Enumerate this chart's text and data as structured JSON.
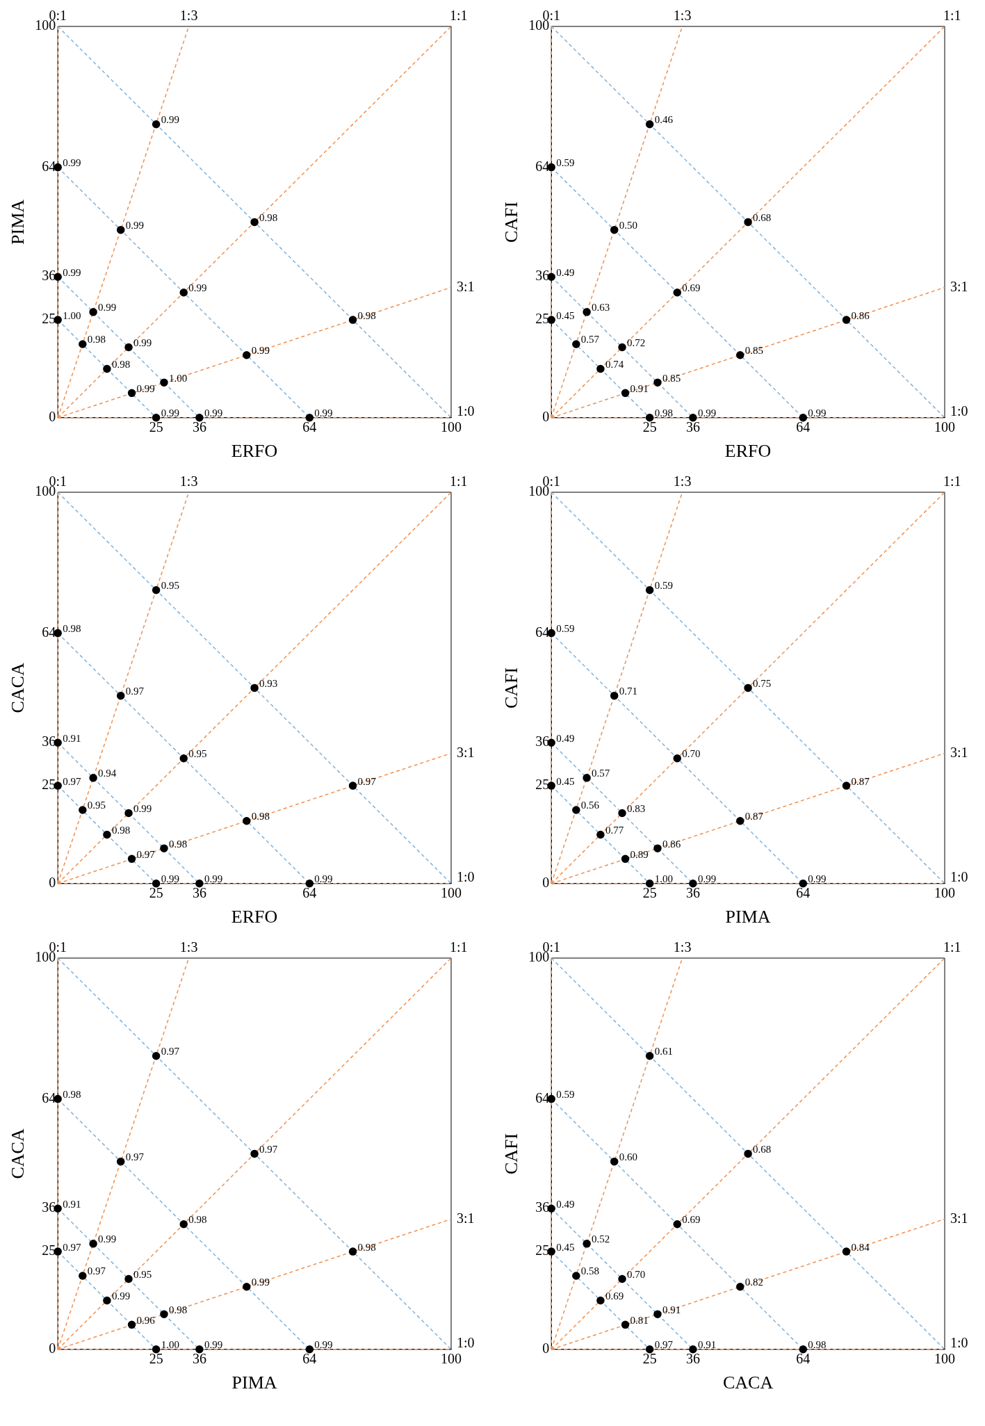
{
  "chart_data": [
    {
      "type": "scatter",
      "xlabel": "ERFO",
      "ylabel": "PIMA",
      "xlim": [
        0,
        100
      ],
      "ylim": [
        0,
        100
      ],
      "xticks": [
        25,
        36,
        64,
        100
      ],
      "yticks": [
        0,
        25,
        36,
        64,
        100
      ],
      "grid": false,
      "series": [
        {
          "type": "scatter",
          "color": "#000000",
          "marker": "circle",
          "x": [
            0,
            0,
            0,
            25,
            16,
            9,
            6.3,
            50,
            32,
            18,
            12.5,
            75,
            48,
            27,
            18.8,
            64,
            36,
            25
          ],
          "values": [
            64,
            36,
            25,
            75,
            48,
            27,
            18.8,
            50,
            32,
            18,
            12.5,
            25,
            16,
            9,
            6.3,
            0,
            0,
            0
          ]
        },
        {
          "type": "line",
          "color": "#7fb2dc",
          "marker": "none",
          "line_style": "dashed",
          "x": [
            0,
            100
          ],
          "values": [
            100,
            0
          ]
        },
        {
          "type": "line",
          "color": "#7fb2dc",
          "marker": "none",
          "line_style": "dashed",
          "x": [
            0,
            64
          ],
          "values": [
            64,
            0
          ]
        },
        {
          "type": "line",
          "color": "#7fb2dc",
          "marker": "none",
          "line_style": "dashed",
          "x": [
            0,
            36
          ],
          "values": [
            36,
            0
          ]
        },
        {
          "type": "line",
          "color": "#7fb2dc",
          "marker": "none",
          "line_style": "dashed",
          "x": [
            0,
            25
          ],
          "values": [
            25,
            0
          ]
        },
        {
          "type": "line",
          "name": "0:1",
          "color": "#f0904f",
          "marker": "none",
          "line_style": "dashed",
          "x": [
            0,
            0
          ],
          "values": [
            0,
            100
          ]
        },
        {
          "type": "line",
          "name": "1:3",
          "color": "#f0904f",
          "marker": "none",
          "line_style": "dashed",
          "x": [
            0,
            33.3
          ],
          "values": [
            0,
            100
          ]
        },
        {
          "type": "line",
          "name": "1:1",
          "color": "#f0904f",
          "marker": "none",
          "line_style": "dashed",
          "x": [
            0,
            100
          ],
          "values": [
            0,
            100
          ]
        },
        {
          "type": "line",
          "name": "3:1",
          "color": "#f0904f",
          "marker": "none",
          "line_style": "dashed",
          "x": [
            0,
            100
          ],
          "values": [
            0,
            33.3
          ]
        },
        {
          "type": "line",
          "name": "1:0",
          "color": "#f0904f",
          "marker": "none",
          "line_style": "dashed",
          "x": [
            0,
            100
          ],
          "values": [
            0,
            0
          ]
        }
      ],
      "annotations": [
        {
          "text": "0.99",
          "x": 0,
          "y": 64
        },
        {
          "text": "0.99",
          "x": 0,
          "y": 36
        },
        {
          "text": "1.00",
          "x": 0,
          "y": 25
        },
        {
          "text": "0.99",
          "x": 25,
          "y": 75
        },
        {
          "text": "0.99",
          "x": 16,
          "y": 48
        },
        {
          "text": "0.99",
          "x": 9,
          "y": 27
        },
        {
          "text": "0.98",
          "x": 6.3,
          "y": 18.8
        },
        {
          "text": "0.98",
          "x": 50,
          "y": 50
        },
        {
          "text": "0.99",
          "x": 32,
          "y": 32
        },
        {
          "text": "0.99",
          "x": 18,
          "y": 18
        },
        {
          "text": "0.98",
          "x": 12.5,
          "y": 12.5
        },
        {
          "text": "0.98",
          "x": 75,
          "y": 25
        },
        {
          "text": "0.99",
          "x": 48,
          "y": 16
        },
        {
          "text": "1.00",
          "x": 27,
          "y": 9
        },
        {
          "text": "0.99",
          "x": 18.8,
          "y": 6.3
        },
        {
          "text": "0.99",
          "x": 64,
          "y": 0
        },
        {
          "text": "0.99",
          "x": 36,
          "y": 0
        },
        {
          "text": "0.99",
          "x": 25,
          "y": 0
        }
      ]
    },
    {
      "type": "scatter",
      "xlabel": "ERFO",
      "ylabel": "CAFI",
      "xlim": [
        0,
        100
      ],
      "ylim": [
        0,
        100
      ],
      "xticks": [
        25,
        36,
        64,
        100
      ],
      "yticks": [
        0,
        25,
        36,
        64,
        100
      ],
      "grid": false,
      "series": [
        {
          "type": "scatter",
          "color": "#000000",
          "marker": "circle",
          "x": [
            0,
            0,
            0,
            25,
            16,
            9,
            6.3,
            50,
            32,
            18,
            12.5,
            75,
            48,
            27,
            18.8,
            64,
            36,
            25
          ],
          "values": [
            64,
            36,
            25,
            75,
            48,
            27,
            18.8,
            50,
            32,
            18,
            12.5,
            25,
            16,
            9,
            6.3,
            0,
            0,
            0
          ]
        },
        {
          "type": "line",
          "color": "#7fb2dc",
          "marker": "none",
          "line_style": "dashed",
          "x": [
            0,
            100
          ],
          "values": [
            100,
            0
          ]
        },
        {
          "type": "line",
          "color": "#7fb2dc",
          "marker": "none",
          "line_style": "dashed",
          "x": [
            0,
            64
          ],
          "values": [
            64,
            0
          ]
        },
        {
          "type": "line",
          "color": "#7fb2dc",
          "marker": "none",
          "line_style": "dashed",
          "x": [
            0,
            36
          ],
          "values": [
            36,
            0
          ]
        },
        {
          "type": "line",
          "color": "#7fb2dc",
          "marker": "none",
          "line_style": "dashed",
          "x": [
            0,
            25
          ],
          "values": [
            25,
            0
          ]
        },
        {
          "type": "line",
          "name": "0:1",
          "color": "#f0904f",
          "marker": "none",
          "line_style": "dashed",
          "x": [
            0,
            0
          ],
          "values": [
            0,
            100
          ]
        },
        {
          "type": "line",
          "name": "1:3",
          "color": "#f0904f",
          "marker": "none",
          "line_style": "dashed",
          "x": [
            0,
            33.3
          ],
          "values": [
            0,
            100
          ]
        },
        {
          "type": "line",
          "name": "1:1",
          "color": "#f0904f",
          "marker": "none",
          "line_style": "dashed",
          "x": [
            0,
            100
          ],
          "values": [
            0,
            100
          ]
        },
        {
          "type": "line",
          "name": "3:1",
          "color": "#f0904f",
          "marker": "none",
          "line_style": "dashed",
          "x": [
            0,
            100
          ],
          "values": [
            0,
            33.3
          ]
        },
        {
          "type": "line",
          "name": "1:0",
          "color": "#f0904f",
          "marker": "none",
          "line_style": "dashed",
          "x": [
            0,
            100
          ],
          "values": [
            0,
            0
          ]
        }
      ],
      "annotations": [
        {
          "text": "0.59",
          "x": 0,
          "y": 64
        },
        {
          "text": "0.49",
          "x": 0,
          "y": 36
        },
        {
          "text": "0.45",
          "x": 0,
          "y": 25
        },
        {
          "text": "0.46",
          "x": 25,
          "y": 75
        },
        {
          "text": "0.50",
          "x": 16,
          "y": 48
        },
        {
          "text": "0.63",
          "x": 9,
          "y": 27
        },
        {
          "text": "0.57",
          "x": 6.3,
          "y": 18.8
        },
        {
          "text": "0.68",
          "x": 50,
          "y": 50
        },
        {
          "text": "0.69",
          "x": 32,
          "y": 32
        },
        {
          "text": "0.72",
          "x": 18,
          "y": 18
        },
        {
          "text": "0.74",
          "x": 12.5,
          "y": 12.5
        },
        {
          "text": "0.86",
          "x": 75,
          "y": 25
        },
        {
          "text": "0.85",
          "x": 48,
          "y": 16
        },
        {
          "text": "0.85",
          "x": 27,
          "y": 9
        },
        {
          "text": "0.91",
          "x": 18.8,
          "y": 6.3
        },
        {
          "text": "0.99",
          "x": 64,
          "y": 0
        },
        {
          "text": "0.99",
          "x": 36,
          "y": 0
        },
        {
          "text": "0.98",
          "x": 25,
          "y": 0
        }
      ]
    },
    {
      "type": "scatter",
      "xlabel": "ERFO",
      "ylabel": "CACA",
      "xlim": [
        0,
        100
      ],
      "ylim": [
        0,
        100
      ],
      "xticks": [
        25,
        36,
        64,
        100
      ],
      "yticks": [
        0,
        25,
        36,
        64,
        100
      ],
      "grid": false,
      "series": [
        {
          "type": "scatter",
          "color": "#000000",
          "marker": "circle",
          "x": [
            0,
            0,
            0,
            25,
            16,
            9,
            6.3,
            50,
            32,
            18,
            12.5,
            75,
            48,
            27,
            18.8,
            64,
            36,
            25
          ],
          "values": [
            64,
            36,
            25,
            75,
            48,
            27,
            18.8,
            50,
            32,
            18,
            12.5,
            25,
            16,
            9,
            6.3,
            0,
            0,
            0
          ]
        },
        {
          "type": "line",
          "color": "#7fb2dc",
          "marker": "none",
          "line_style": "dashed",
          "x": [
            0,
            100
          ],
          "values": [
            100,
            0
          ]
        },
        {
          "type": "line",
          "color": "#7fb2dc",
          "marker": "none",
          "line_style": "dashed",
          "x": [
            0,
            64
          ],
          "values": [
            64,
            0
          ]
        },
        {
          "type": "line",
          "color": "#7fb2dc",
          "marker": "none",
          "line_style": "dashed",
          "x": [
            0,
            36
          ],
          "values": [
            36,
            0
          ]
        },
        {
          "type": "line",
          "color": "#7fb2dc",
          "marker": "none",
          "line_style": "dashed",
          "x": [
            0,
            25
          ],
          "values": [
            25,
            0
          ]
        },
        {
          "type": "line",
          "name": "0:1",
          "color": "#f0904f",
          "marker": "none",
          "line_style": "dashed",
          "x": [
            0,
            0
          ],
          "values": [
            0,
            100
          ]
        },
        {
          "type": "line",
          "name": "1:3",
          "color": "#f0904f",
          "marker": "none",
          "line_style": "dashed",
          "x": [
            0,
            33.3
          ],
          "values": [
            0,
            100
          ]
        },
        {
          "type": "line",
          "name": "1:1",
          "color": "#f0904f",
          "marker": "none",
          "line_style": "dashed",
          "x": [
            0,
            100
          ],
          "values": [
            0,
            100
          ]
        },
        {
          "type": "line",
          "name": "3:1",
          "color": "#f0904f",
          "marker": "none",
          "line_style": "dashed",
          "x": [
            0,
            100
          ],
          "values": [
            0,
            33.3
          ]
        },
        {
          "type": "line",
          "name": "1:0",
          "color": "#f0904f",
          "marker": "none",
          "line_style": "dashed",
          "x": [
            0,
            100
          ],
          "values": [
            0,
            0
          ]
        }
      ],
      "annotations": [
        {
          "text": "0.98",
          "x": 0,
          "y": 64
        },
        {
          "text": "0.91",
          "x": 0,
          "y": 36
        },
        {
          "text": "0.97",
          "x": 0,
          "y": 25
        },
        {
          "text": "0.95",
          "x": 25,
          "y": 75
        },
        {
          "text": "0.97",
          "x": 16,
          "y": 48
        },
        {
          "text": "0.94",
          "x": 9,
          "y": 27
        },
        {
          "text": "0.95",
          "x": 6.3,
          "y": 18.8
        },
        {
          "text": "0.93",
          "x": 50,
          "y": 50
        },
        {
          "text": "0.95",
          "x": 32,
          "y": 32
        },
        {
          "text": "0.99",
          "x": 18,
          "y": 18
        },
        {
          "text": "0.98",
          "x": 12.5,
          "y": 12.5
        },
        {
          "text": "0.97",
          "x": 75,
          "y": 25
        },
        {
          "text": "0.98",
          "x": 48,
          "y": 16
        },
        {
          "text": "0.98",
          "x": 27,
          "y": 9
        },
        {
          "text": "0.97",
          "x": 18.8,
          "y": 6.3
        },
        {
          "text": "0.99",
          "x": 64,
          "y": 0
        },
        {
          "text": "0.99",
          "x": 36,
          "y": 0
        },
        {
          "text": "0.99",
          "x": 25,
          "y": 0
        }
      ]
    },
    {
      "type": "scatter",
      "xlabel": "PIMA",
      "ylabel": "CAFI",
      "xlim": [
        0,
        100
      ],
      "ylim": [
        0,
        100
      ],
      "xticks": [
        25,
        36,
        64,
        100
      ],
      "yticks": [
        0,
        25,
        36,
        64,
        100
      ],
      "grid": false,
      "series": [
        {
          "type": "scatter",
          "color": "#000000",
          "marker": "circle",
          "x": [
            0,
            0,
            0,
            25,
            16,
            9,
            6.3,
            50,
            32,
            18,
            12.5,
            75,
            48,
            27,
            18.8,
            64,
            36,
            25
          ],
          "values": [
            64,
            36,
            25,
            75,
            48,
            27,
            18.8,
            50,
            32,
            18,
            12.5,
            25,
            16,
            9,
            6.3,
            0,
            0,
            0
          ]
        },
        {
          "type": "line",
          "color": "#7fb2dc",
          "marker": "none",
          "line_style": "dashed",
          "x": [
            0,
            100
          ],
          "values": [
            100,
            0
          ]
        },
        {
          "type": "line",
          "color": "#7fb2dc",
          "marker": "none",
          "line_style": "dashed",
          "x": [
            0,
            64
          ],
          "values": [
            64,
            0
          ]
        },
        {
          "type": "line",
          "color": "#7fb2dc",
          "marker": "none",
          "line_style": "dashed",
          "x": [
            0,
            36
          ],
          "values": [
            36,
            0
          ]
        },
        {
          "type": "line",
          "color": "#7fb2dc",
          "marker": "none",
          "line_style": "dashed",
          "x": [
            0,
            25
          ],
          "values": [
            25,
            0
          ]
        },
        {
          "type": "line",
          "name": "0:1",
          "color": "#f0904f",
          "marker": "none",
          "line_style": "dashed",
          "x": [
            0,
            0
          ],
          "values": [
            0,
            100
          ]
        },
        {
          "type": "line",
          "name": "1:3",
          "color": "#f0904f",
          "marker": "none",
          "line_style": "dashed",
          "x": [
            0,
            33.3
          ],
          "values": [
            0,
            100
          ]
        },
        {
          "type": "line",
          "name": "1:1",
          "color": "#f0904f",
          "marker": "none",
          "line_style": "dashed",
          "x": [
            0,
            100
          ],
          "values": [
            0,
            100
          ]
        },
        {
          "type": "line",
          "name": "3:1",
          "color": "#f0904f",
          "marker": "none",
          "line_style": "dashed",
          "x": [
            0,
            100
          ],
          "values": [
            0,
            33.3
          ]
        },
        {
          "type": "line",
          "name": "1:0",
          "color": "#f0904f",
          "marker": "none",
          "line_style": "dashed",
          "x": [
            0,
            100
          ],
          "values": [
            0,
            0
          ]
        }
      ],
      "annotations": [
        {
          "text": "0.59",
          "x": 0,
          "y": 64
        },
        {
          "text": "0.49",
          "x": 0,
          "y": 36
        },
        {
          "text": "0.45",
          "x": 0,
          "y": 25
        },
        {
          "text": "0.59",
          "x": 25,
          "y": 75
        },
        {
          "text": "0.71",
          "x": 16,
          "y": 48
        },
        {
          "text": "0.57",
          "x": 9,
          "y": 27
        },
        {
          "text": "0.56",
          "x": 6.3,
          "y": 18.8
        },
        {
          "text": "0.75",
          "x": 50,
          "y": 50
        },
        {
          "text": "0.70",
          "x": 32,
          "y": 32
        },
        {
          "text": "0.83",
          "x": 18,
          "y": 18
        },
        {
          "text": "0.77",
          "x": 12.5,
          "y": 12.5
        },
        {
          "text": "0.87",
          "x": 75,
          "y": 25
        },
        {
          "text": "0.87",
          "x": 48,
          "y": 16
        },
        {
          "text": "0.86",
          "x": 27,
          "y": 9
        },
        {
          "text": "0.89",
          "x": 18.8,
          "y": 6.3
        },
        {
          "text": "0.99",
          "x": 64,
          "y": 0
        },
        {
          "text": "0.99",
          "x": 36,
          "y": 0
        },
        {
          "text": "1.00",
          "x": 25,
          "y": 0
        }
      ]
    },
    {
      "type": "scatter",
      "xlabel": "PIMA",
      "ylabel": "CACA",
      "xlim": [
        0,
        100
      ],
      "ylim": [
        0,
        100
      ],
      "xticks": [
        25,
        36,
        64,
        100
      ],
      "yticks": [
        0,
        25,
        36,
        64,
        100
      ],
      "grid": false,
      "series": [
        {
          "type": "scatter",
          "color": "#000000",
          "marker": "circle",
          "x": [
            0,
            0,
            0,
            25,
            16,
            9,
            6.3,
            50,
            32,
            18,
            12.5,
            75,
            48,
            27,
            18.8,
            64,
            36,
            25
          ],
          "values": [
            64,
            36,
            25,
            75,
            48,
            27,
            18.8,
            50,
            32,
            18,
            12.5,
            25,
            16,
            9,
            6.3,
            0,
            0,
            0
          ]
        },
        {
          "type": "line",
          "color": "#7fb2dc",
          "marker": "none",
          "line_style": "dashed",
          "x": [
            0,
            100
          ],
          "values": [
            100,
            0
          ]
        },
        {
          "type": "line",
          "color": "#7fb2dc",
          "marker": "none",
          "line_style": "dashed",
          "x": [
            0,
            64
          ],
          "values": [
            64,
            0
          ]
        },
        {
          "type": "line",
          "color": "#7fb2dc",
          "marker": "none",
          "line_style": "dashed",
          "x": [
            0,
            36
          ],
          "values": [
            36,
            0
          ]
        },
        {
          "type": "line",
          "color": "#7fb2dc",
          "marker": "none",
          "line_style": "dashed",
          "x": [
            0,
            25
          ],
          "values": [
            25,
            0
          ]
        },
        {
          "type": "line",
          "name": "0:1",
          "color": "#f0904f",
          "marker": "none",
          "line_style": "dashed",
          "x": [
            0,
            0
          ],
          "values": [
            0,
            100
          ]
        },
        {
          "type": "line",
          "name": "1:3",
          "color": "#f0904f",
          "marker": "none",
          "line_style": "dashed",
          "x": [
            0,
            33.3
          ],
          "values": [
            0,
            100
          ]
        },
        {
          "type": "line",
          "name": "1:1",
          "color": "#f0904f",
          "marker": "none",
          "line_style": "dashed",
          "x": [
            0,
            100
          ],
          "values": [
            0,
            100
          ]
        },
        {
          "type": "line",
          "name": "3:1",
          "color": "#f0904f",
          "marker": "none",
          "line_style": "dashed",
          "x": [
            0,
            100
          ],
          "values": [
            0,
            33.3
          ]
        },
        {
          "type": "line",
          "name": "1:0",
          "color": "#f0904f",
          "marker": "none",
          "line_style": "dashed",
          "x": [
            0,
            100
          ],
          "values": [
            0,
            0
          ]
        }
      ],
      "annotations": [
        {
          "text": "0.98",
          "x": 0,
          "y": 64
        },
        {
          "text": "0.91",
          "x": 0,
          "y": 36
        },
        {
          "text": "0.97",
          "x": 0,
          "y": 25
        },
        {
          "text": "0.97",
          "x": 25,
          "y": 75
        },
        {
          "text": "0.97",
          "x": 16,
          "y": 48
        },
        {
          "text": "0.99",
          "x": 9,
          "y": 27
        },
        {
          "text": "0.97",
          "x": 6.3,
          "y": 18.8
        },
        {
          "text": "0.97",
          "x": 50,
          "y": 50
        },
        {
          "text": "0.98",
          "x": 32,
          "y": 32
        },
        {
          "text": "0.95",
          "x": 18,
          "y": 18
        },
        {
          "text": "0.99",
          "x": 12.5,
          "y": 12.5
        },
        {
          "text": "0.98",
          "x": 75,
          "y": 25
        },
        {
          "text": "0.99",
          "x": 48,
          "y": 16
        },
        {
          "text": "0.98",
          "x": 27,
          "y": 9
        },
        {
          "text": "0.96",
          "x": 18.8,
          "y": 6.3
        },
        {
          "text": "0.99",
          "x": 64,
          "y": 0
        },
        {
          "text": "0.99",
          "x": 36,
          "y": 0
        },
        {
          "text": "1.00",
          "x": 25,
          "y": 0
        }
      ]
    },
    {
      "type": "scatter",
      "xlabel": "CACA",
      "ylabel": "CAFI",
      "xlim": [
        0,
        100
      ],
      "ylim": [
        0,
        100
      ],
      "xticks": [
        25,
        36,
        64,
        100
      ],
      "yticks": [
        0,
        25,
        36,
        64,
        100
      ],
      "grid": false,
      "series": [
        {
          "type": "scatter",
          "color": "#000000",
          "marker": "circle",
          "x": [
            0,
            0,
            0,
            25,
            16,
            9,
            6.3,
            50,
            32,
            18,
            12.5,
            75,
            48,
            27,
            18.8,
            64,
            36,
            25
          ],
          "values": [
            64,
            36,
            25,
            75,
            48,
            27,
            18.8,
            50,
            32,
            18,
            12.5,
            25,
            16,
            9,
            6.3,
            0,
            0,
            0
          ]
        },
        {
          "type": "line",
          "color": "#7fb2dc",
          "marker": "none",
          "line_style": "dashed",
          "x": [
            0,
            100
          ],
          "values": [
            100,
            0
          ]
        },
        {
          "type": "line",
          "color": "#7fb2dc",
          "marker": "none",
          "line_style": "dashed",
          "x": [
            0,
            64
          ],
          "values": [
            64,
            0
          ]
        },
        {
          "type": "line",
          "color": "#7fb2dc",
          "marker": "none",
          "line_style": "dashed",
          "x": [
            0,
            36
          ],
          "values": [
            36,
            0
          ]
        },
        {
          "type": "line",
          "color": "#7fb2dc",
          "marker": "none",
          "line_style": "dashed",
          "x": [
            0,
            25
          ],
          "values": [
            25,
            0
          ]
        },
        {
          "type": "line",
          "name": "0:1",
          "color": "#f0904f",
          "marker": "none",
          "line_style": "dashed",
          "x": [
            0,
            0
          ],
          "values": [
            0,
            100
          ]
        },
        {
          "type": "line",
          "name": "1:3",
          "color": "#f0904f",
          "marker": "none",
          "line_style": "dashed",
          "x": [
            0,
            33.3
          ],
          "values": [
            0,
            100
          ]
        },
        {
          "type": "line",
          "name": "1:1",
          "color": "#f0904f",
          "marker": "none",
          "line_style": "dashed",
          "x": [
            0,
            100
          ],
          "values": [
            0,
            100
          ]
        },
        {
          "type": "line",
          "name": "3:1",
          "color": "#f0904f",
          "marker": "none",
          "line_style": "dashed",
          "x": [
            0,
            100
          ],
          "values": [
            0,
            33.3
          ]
        },
        {
          "type": "line",
          "name": "1:0",
          "color": "#f0904f",
          "marker": "none",
          "line_style": "dashed",
          "x": [
            0,
            100
          ],
          "values": [
            0,
            0
          ]
        }
      ],
      "annotations": [
        {
          "text": "0.59",
          "x": 0,
          "y": 64
        },
        {
          "text": "0.49",
          "x": 0,
          "y": 36
        },
        {
          "text": "0.45",
          "x": 0,
          "y": 25
        },
        {
          "text": "0.61",
          "x": 25,
          "y": 75
        },
        {
          "text": "0.60",
          "x": 16,
          "y": 48
        },
        {
          "text": "0.52",
          "x": 9,
          "y": 27
        },
        {
          "text": "0.58",
          "x": 6.3,
          "y": 18.8
        },
        {
          "text": "0.68",
          "x": 50,
          "y": 50
        },
        {
          "text": "0.69",
          "x": 32,
          "y": 32
        },
        {
          "text": "0.70",
          "x": 18,
          "y": 18
        },
        {
          "text": "0.69",
          "x": 12.5,
          "y": 12.5
        },
        {
          "text": "0.84",
          "x": 75,
          "y": 25
        },
        {
          "text": "0.82",
          "x": 48,
          "y": 16
        },
        {
          "text": "0.91",
          "x": 27,
          "y": 9
        },
        {
          "text": "0.81",
          "x": 18.8,
          "y": 6.3
        },
        {
          "text": "0.98",
          "x": 64,
          "y": 0
        },
        {
          "text": "0.91",
          "x": 36,
          "y": 0
        },
        {
          "text": "0.97",
          "x": 25,
          "y": 0
        }
      ]
    }
  ]
}
